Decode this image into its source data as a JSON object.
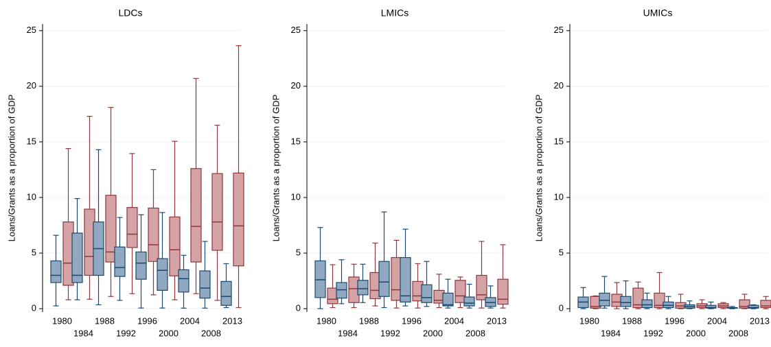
{
  "chart_data": [
    {
      "type": "box",
      "title": "LDCs",
      "ylabel": "Loans/Grants as a proportion of GDP",
      "categories": [
        "1980",
        "1984",
        "1988",
        "1992",
        "1996",
        "2000",
        "2004",
        "2008",
        "2013"
      ],
      "ylim": [
        -0.3,
        25.6
      ],
      "yticks": [
        0,
        5,
        10,
        15,
        20,
        25
      ],
      "grid": true,
      "series": [
        {
          "color": "#1a476f",
          "fill": "#90a8c0",
          "min": [
            0.25,
            0.8,
            0.35,
            0.75,
            0.06,
            0.06,
            0.05,
            0.05,
            0.1
          ],
          "q1": [
            2.35,
            2.35,
            3.0,
            2.9,
            2.65,
            1.65,
            1.5,
            0.95,
            0.3
          ],
          "median": [
            3.0,
            3.0,
            5.4,
            3.7,
            4.1,
            3.45,
            2.7,
            1.85,
            1.1
          ],
          "q3": [
            4.3,
            6.8,
            7.8,
            5.55,
            5.1,
            4.5,
            3.5,
            3.4,
            2.45
          ],
          "max": [
            6.6,
            9.9,
            14.3,
            8.2,
            8.45,
            8.65,
            4.8,
            6.05,
            4.05
          ]
        },
        {
          "color": "#90353b",
          "fill": "#d4a3a5",
          "min": [
            0.8,
            0.85,
            1.1,
            1.35,
            1.25,
            0.8,
            1.35,
            0.75,
            0.1
          ],
          "q1": [
            2.1,
            3.0,
            4.2,
            5.5,
            4.25,
            2.95,
            4.2,
            5.25,
            3.85
          ],
          "median": [
            4.1,
            4.7,
            5.1,
            6.7,
            5.75,
            5.3,
            7.4,
            7.8,
            7.45
          ],
          "q3": [
            7.8,
            8.95,
            10.2,
            9.1,
            9.05,
            8.25,
            12.6,
            12.15,
            12.2
          ],
          "max": [
            14.4,
            17.3,
            18.1,
            13.95,
            12.5,
            15.05,
            20.7,
            16.5,
            23.65
          ]
        }
      ]
    },
    {
      "type": "box",
      "title": "LMICs",
      "ylabel": "Loans/Grants as a proportion of GDP",
      "categories": [
        "1980",
        "1984",
        "1988",
        "1992",
        "1996",
        "2000",
        "2004",
        "2008",
        "2013"
      ],
      "ylim": [
        -0.3,
        25.6
      ],
      "yticks": [
        0,
        5,
        10,
        15,
        20,
        25
      ],
      "grid": true,
      "series": [
        {
          "color": "#1a476f",
          "fill": "#90a8c0",
          "min": [
            0,
            0.45,
            0.55,
            0.1,
            0.25,
            0.2,
            0.06,
            0.06,
            0.06
          ],
          "q1": [
            1.0,
            0.95,
            1.25,
            1.1,
            0.6,
            0.55,
            0.25,
            0.25,
            0.2
          ],
          "median": [
            2.6,
            1.7,
            1.8,
            2.4,
            1.15,
            1.0,
            0.35,
            0.5,
            0.55
          ],
          "q3": [
            4.3,
            2.35,
            2.55,
            4.25,
            4.6,
            2.15,
            1.4,
            1.05,
            1.0
          ],
          "max": [
            7.3,
            4.4,
            4.0,
            8.7,
            7.15,
            4.25,
            2.65,
            2.2,
            2.05
          ]
        },
        {
          "color": "#90353b",
          "fill": "#d4a3a5",
          "min": [
            0.1,
            0.1,
            0.25,
            0.06,
            0.06,
            0.1,
            0.1,
            0.06,
            0.06
          ],
          "q1": [
            0.45,
            0.55,
            0.9,
            0.75,
            0.7,
            0.5,
            0.55,
            0.8,
            0.4
          ],
          "median": [
            0.85,
            1.8,
            1.65,
            1.7,
            1.15,
            0.75,
            1.15,
            1.25,
            0.85
          ],
          "q3": [
            1.85,
            2.85,
            3.25,
            4.6,
            2.45,
            1.65,
            2.55,
            3.0,
            2.65
          ],
          "max": [
            3.95,
            4.0,
            5.9,
            6.15,
            4.05,
            3.1,
            2.85,
            6.05,
            5.75
          ]
        }
      ]
    },
    {
      "type": "box",
      "title": "UMICs",
      "ylabel": "Loans/Grants as a proportion of GDP",
      "categories": [
        "1980",
        "1984",
        "1988",
        "1992",
        "1996",
        "2000",
        "2004",
        "2008",
        "2013"
      ],
      "ylim": [
        -0.3,
        25.6
      ],
      "yticks": [
        0,
        5,
        10,
        15,
        20,
        25
      ],
      "grid": true,
      "series": [
        {
          "color": "#1a476f",
          "fill": "#90a8c0",
          "min": [
            0,
            0.05,
            0,
            0,
            0,
            0,
            0,
            0,
            0
          ],
          "q1": [
            0.1,
            0.25,
            0.2,
            0.1,
            0.1,
            0.05,
            0.05,
            0.05,
            0.05
          ],
          "median": [
            0.6,
            0.75,
            0.55,
            0.35,
            0.3,
            0.2,
            0.1,
            0.05,
            0.1
          ],
          "q3": [
            1.05,
            1.4,
            1.1,
            0.8,
            0.6,
            0.35,
            0.3,
            0.1,
            0.3
          ],
          "max": [
            1.9,
            2.9,
            2.5,
            1.4,
            1.1,
            0.7,
            0.6,
            0.2,
            0.35
          ]
        },
        {
          "color": "#90353b",
          "fill": "#d4a3a5",
          "min": [
            0,
            0,
            0,
            0,
            0,
            0,
            0,
            0,
            0
          ],
          "q1": [
            0.05,
            0.2,
            0.1,
            0.1,
            0.05,
            0.1,
            0.1,
            0.05,
            0.1
          ],
          "median": [
            0.2,
            0.6,
            0.35,
            0.3,
            0.25,
            0.25,
            0.25,
            0.2,
            0.25
          ],
          "q3": [
            1.1,
            1.3,
            1.85,
            1.4,
            0.55,
            0.45,
            0.45,
            0.8,
            0.75
          ],
          "max": [
            1.15,
            2.35,
            2.4,
            3.25,
            1.3,
            0.8,
            0.55,
            1.3,
            1.1
          ]
        }
      ]
    }
  ]
}
